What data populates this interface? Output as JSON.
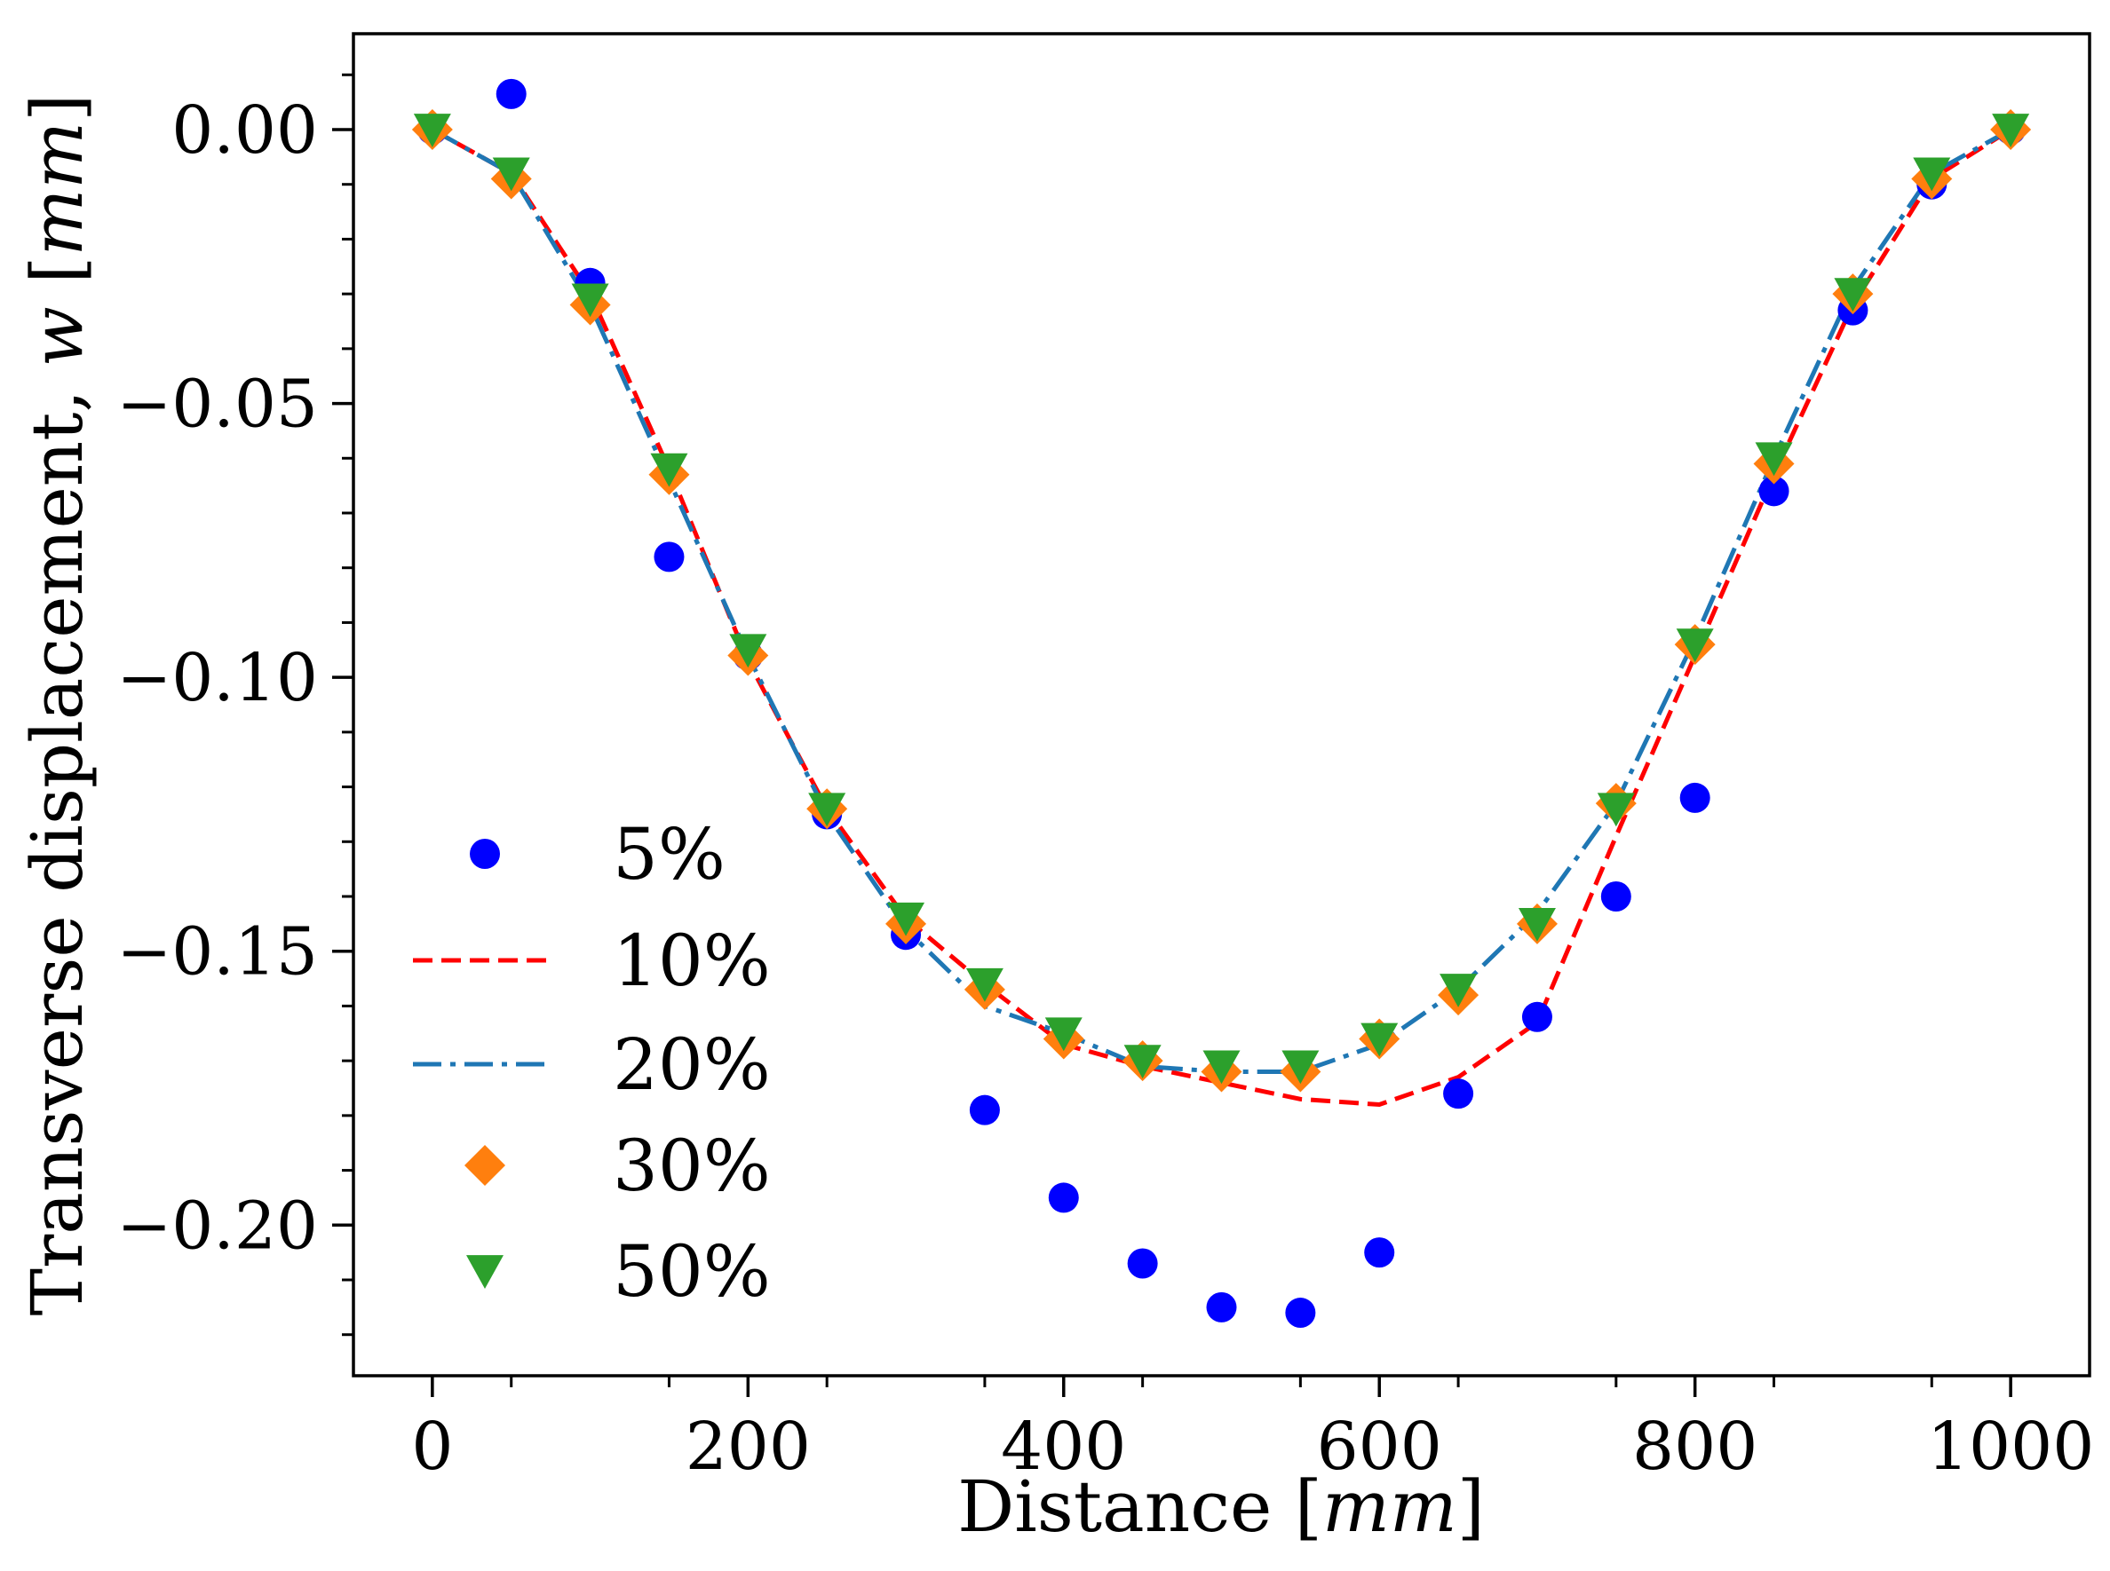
{
  "chart_data": {
    "type": "line",
    "title": "",
    "xlabel": {
      "prefix": "Distance [",
      "unit": "mm",
      "suffix": "]"
    },
    "ylabel": {
      "prefix": "Transverse displacement, ",
      "var": "w",
      "mid": " [",
      "unit": "mm",
      "suffix": "]"
    },
    "xlim": [
      -50,
      1050
    ],
    "ylim": [
      -0.2275,
      0.0175
    ],
    "xticks": [
      0,
      200,
      400,
      600,
      800,
      1000
    ],
    "xtick_labels": [
      "0",
      "200",
      "400",
      "600",
      "800",
      "1000"
    ],
    "yticks": [
      0.0,
      -0.05,
      -0.1,
      -0.15,
      -0.2
    ],
    "ytick_labels": [
      "0.00",
      "−0.05",
      "−0.10",
      "−0.15",
      "−0.20"
    ],
    "grid": false,
    "legend_position": "lower-left",
    "x": [
      0,
      50,
      100,
      150,
      200,
      250,
      300,
      350,
      400,
      450,
      500,
      550,
      600,
      650,
      700,
      750,
      800,
      850,
      900,
      950,
      1000
    ],
    "series": [
      {
        "name": "5%",
        "style": "marker-circle",
        "color": "#0000ff",
        "values": [
          0.0,
          0.0065,
          -0.028,
          -0.078,
          -0.096,
          -0.125,
          -0.147,
          -0.179,
          -0.195,
          -0.207,
          -0.215,
          -0.216,
          -0.205,
          -0.176,
          -0.162,
          -0.14,
          -0.122,
          -0.066,
          -0.033,
          -0.01,
          0.0
        ]
      },
      {
        "name": "10%",
        "style": "dashed",
        "color": "#ff0000",
        "values": [
          0.0,
          -0.008,
          -0.03,
          -0.062,
          -0.097,
          -0.124,
          -0.144,
          -0.156,
          -0.167,
          -0.171,
          -0.174,
          -0.177,
          -0.178,
          -0.173,
          -0.163,
          -0.129,
          -0.096,
          -0.063,
          -0.032,
          -0.009,
          0.0
        ]
      },
      {
        "name": "20%",
        "style": "dashdot",
        "color": "#1f77b4",
        "values": [
          0.0,
          -0.008,
          -0.032,
          -0.064,
          -0.096,
          -0.125,
          -0.146,
          -0.16,
          -0.165,
          -0.171,
          -0.172,
          -0.172,
          -0.167,
          -0.157,
          -0.143,
          -0.123,
          -0.093,
          -0.06,
          -0.029,
          -0.008,
          0.0
        ]
      },
      {
        "name": "30%",
        "style": "marker-diamond",
        "color": "#ff7f0e",
        "values": [
          0.0,
          -0.009,
          -0.032,
          -0.063,
          -0.096,
          -0.124,
          -0.145,
          -0.157,
          -0.166,
          -0.17,
          -0.172,
          -0.172,
          -0.166,
          -0.158,
          -0.145,
          -0.123,
          -0.094,
          -0.061,
          -0.03,
          -0.009,
          0.0
        ]
      },
      {
        "name": "50%",
        "style": "marker-triangle-down",
        "color": "#2ca02c",
        "values": [
          0.0,
          -0.008,
          -0.031,
          -0.062,
          -0.095,
          -0.124,
          -0.144,
          -0.156,
          -0.165,
          -0.17,
          -0.171,
          -0.171,
          -0.166,
          -0.157,
          -0.145,
          -0.124,
          -0.094,
          -0.06,
          -0.03,
          -0.008,
          0.0
        ]
      }
    ]
  }
}
